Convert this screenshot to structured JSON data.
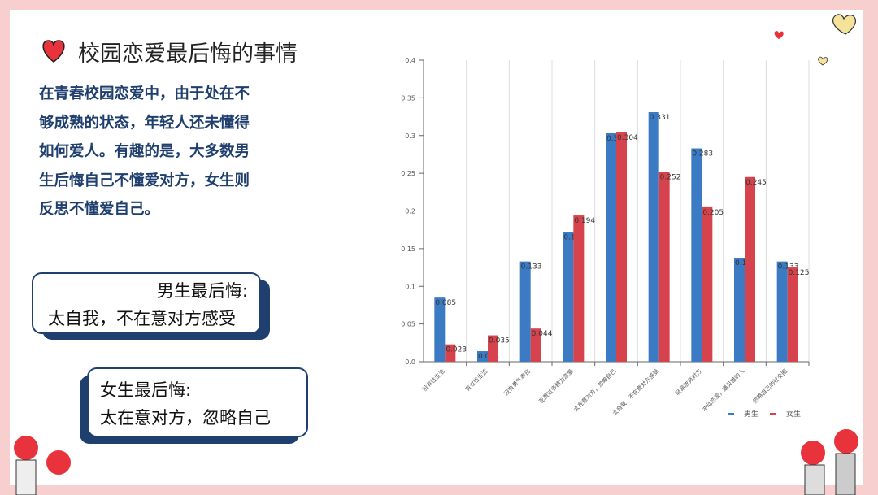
{
  "header": {
    "title": "校园恋爱最后悔的事情"
  },
  "intro": {
    "lines": [
      "在青春校园恋爱中，由于处在不",
      "够成熟的状态，年轻人还未懂得",
      "如何爱人。有趣的是，大多数男",
      "生后悔自己不懂爱对方，女生则",
      "反思不懂爱自己。"
    ]
  },
  "callouts": [
    {
      "title": "男生最后悔:",
      "text": "太自我，不在意对方感受"
    },
    {
      "title": "女生最后悔:",
      "text": "太在意对方，忽略自己"
    }
  ],
  "chart_data": {
    "type": "bar",
    "categories": [
      "没有性生活",
      "有过性生活",
      "没有勇气表白",
      "花费过多精力恋爱",
      "太在意对方，忽略自己",
      "太自我，不在意对方感受",
      "轻易放弃对方",
      "冲动恋爱，遇见错的人",
      "忽略自己的社交圈"
    ],
    "series": [
      {
        "name": "男生",
        "color": "#3b7bc4",
        "values": [
          0.085,
          0.014,
          0.133,
          0.172,
          0.303,
          0.331,
          0.283,
          0.138,
          0.133
        ]
      },
      {
        "name": "女生",
        "color": "#d6434c",
        "values": [
          0.023,
          0.035,
          0.044,
          0.194,
          0.304,
          0.252,
          0.205,
          0.245,
          0.125
        ]
      }
    ],
    "ylim": [
      0,
      0.4
    ],
    "yticks": [
      {
        "value": 0,
        "label": "0.0"
      },
      0.05,
      0.1,
      0.15,
      0.2,
      0.25,
      0.3,
      0.35,
      0.4
    ],
    "legend": "bottom-right"
  }
}
